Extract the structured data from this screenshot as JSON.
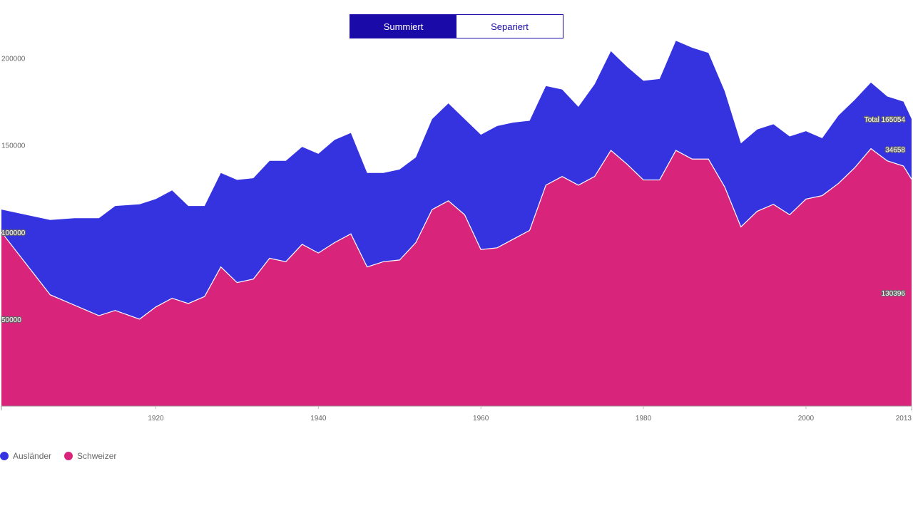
{
  "toggle": {
    "summed_label": "Summiert",
    "separated_label": "Separiert",
    "active": "summed"
  },
  "colors": {
    "foreigners": "#3532e0",
    "swiss": "#d9247c",
    "toggle_active": "#1a0aa8"
  },
  "legend": [
    {
      "label": "Ausländer",
      "color": "#3532e0"
    },
    {
      "label": "Schweizer",
      "color": "#d9247c"
    }
  ],
  "chart_data": {
    "type": "area",
    "stacked": true,
    "x_tick_labels": [
      "1920",
      "1940",
      "1960",
      "1980",
      "2000",
      "2013"
    ],
    "y_tick_labels": [
      "50000",
      "100000",
      "150000",
      "200000"
    ],
    "xlim": [
      1901,
      2013
    ],
    "ylim": [
      0,
      215000
    ],
    "annotations": {
      "total": "Total 165054",
      "foreigners_last": "34658",
      "swiss_last": "130396"
    },
    "x": [
      1901,
      1905,
      1907,
      1910,
      1913,
      1915,
      1918,
      1920,
      1922,
      1924,
      1926,
      1928,
      1930,
      1932,
      1934,
      1936,
      1938,
      1940,
      1942,
      1944,
      1946,
      1948,
      1950,
      1952,
      1954,
      1956,
      1958,
      1960,
      1962,
      1964,
      1966,
      1968,
      1970,
      1972,
      1974,
      1976,
      1978,
      1980,
      1982,
      1984,
      1986,
      1988,
      1990,
      1992,
      1994,
      1996,
      1998,
      2000,
      2002,
      2004,
      2006,
      2008,
      2010,
      2012,
      2013
    ],
    "series": [
      {
        "name": "Schweizer",
        "values": [
          100000,
          76000,
          64000,
          58000,
          52000,
          55000,
          50000,
          57000,
          62000,
          59000,
          63000,
          80000,
          71000,
          73000,
          85000,
          83000,
          93000,
          88000,
          94000,
          99000,
          80000,
          83000,
          84000,
          94000,
          113000,
          118000,
          110000,
          90000,
          91000,
          96000,
          101000,
          127000,
          132000,
          127000,
          132000,
          147000,
          139000,
          130000,
          130000,
          147000,
          142000,
          142000,
          126000,
          103000,
          112000,
          116000,
          110000,
          119000,
          121000,
          128000,
          137000,
          148000,
          141000,
          138000,
          130396
        ]
      },
      {
        "name": "Ausländer",
        "values": [
          13000,
          33000,
          43000,
          50000,
          56000,
          60000,
          66000,
          62000,
          62000,
          56000,
          52000,
          54000,
          59000,
          58000,
          56000,
          58000,
          56000,
          57000,
          59000,
          58000,
          54000,
          51000,
          52000,
          49000,
          52000,
          56000,
          55000,
          66000,
          70000,
          67000,
          63000,
          57000,
          50000,
          45000,
          53000,
          57000,
          56000,
          57000,
          58000,
          63000,
          64000,
          61000,
          55000,
          48000,
          47000,
          46000,
          45000,
          39000,
          33000,
          39000,
          39000,
          38000,
          37000,
          37000,
          34658
        ]
      }
    ]
  }
}
